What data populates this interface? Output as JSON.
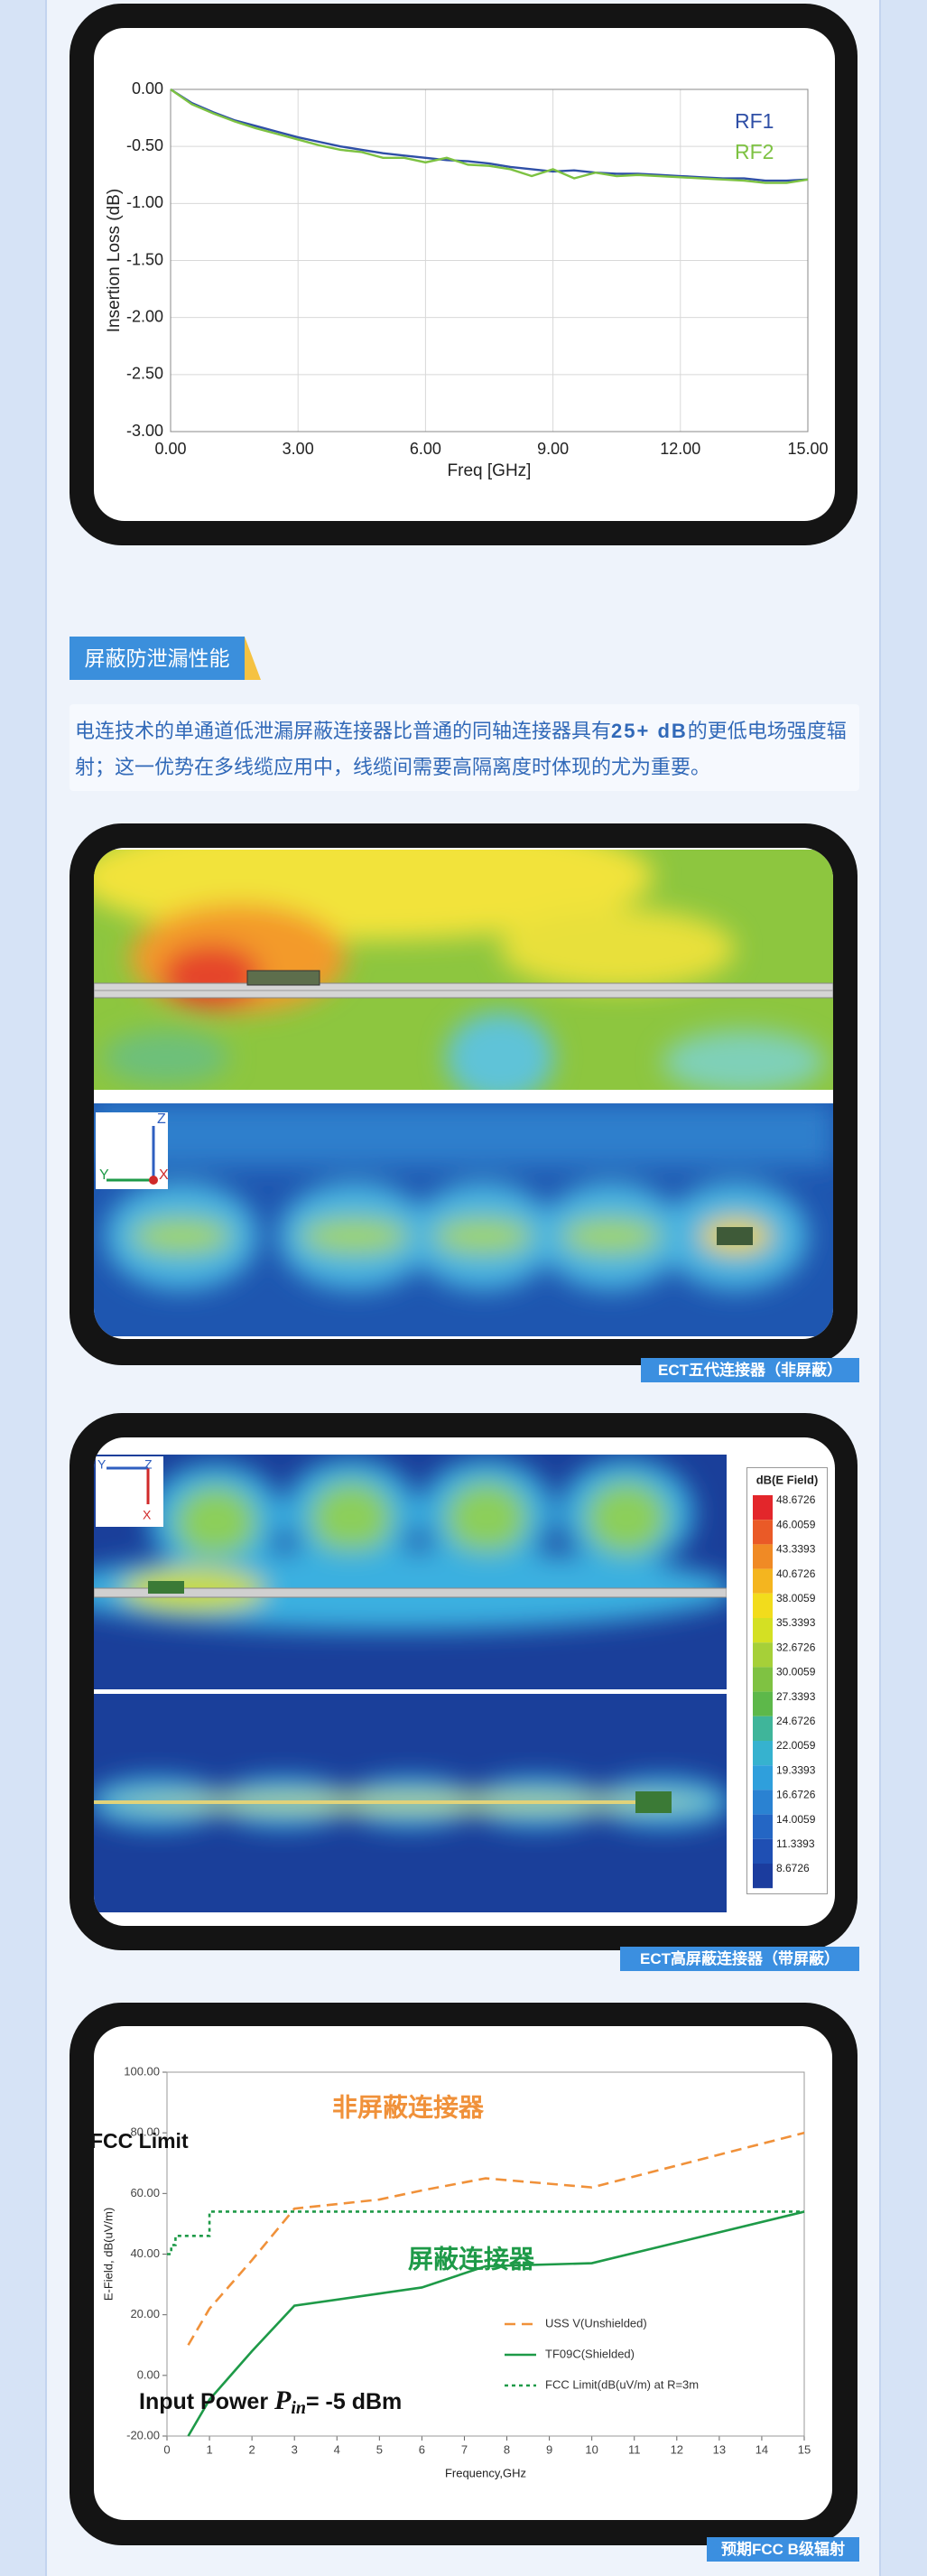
{
  "chart_data": [
    {
      "type": "line",
      "x_label": "Freq [GHz]",
      "y_label": "Insertion Loss (dB)",
      "x": [
        0,
        0.5,
        1,
        1.5,
        2,
        2.5,
        3,
        3.5,
        4,
        4.5,
        5,
        5.5,
        6,
        6.5,
        7,
        7.5,
        8,
        8.5,
        9,
        9.5,
        10,
        10.5,
        11,
        11.5,
        12,
        12.5,
        13,
        13.5,
        14,
        14.5,
        15
      ],
      "series": [
        {
          "name": "RF1",
          "color": "#2f4fa6",
          "style": "solid",
          "values": [
            0,
            -0.12,
            -0.2,
            -0.27,
            -0.32,
            -0.37,
            -0.42,
            -0.46,
            -0.5,
            -0.53,
            -0.56,
            -0.58,
            -0.6,
            -0.62,
            -0.63,
            -0.65,
            -0.68,
            -0.7,
            -0.72,
            -0.71,
            -0.73,
            -0.74,
            -0.74,
            -0.75,
            -0.76,
            -0.77,
            -0.78,
            -0.78,
            -0.8,
            -0.8,
            -0.79
          ]
        },
        {
          "name": "RF2",
          "color": "#7dc242",
          "style": "solid",
          "values": [
            0,
            -0.13,
            -0.21,
            -0.28,
            -0.34,
            -0.39,
            -0.44,
            -0.49,
            -0.53,
            -0.55,
            -0.6,
            -0.6,
            -0.64,
            -0.6,
            -0.66,
            -0.67,
            -0.7,
            -0.76,
            -0.7,
            -0.78,
            -0.73,
            -0.76,
            -0.75,
            -0.76,
            -0.77,
            -0.78,
            -0.79,
            -0.8,
            -0.82,
            -0.82,
            -0.79
          ]
        }
      ],
      "xlim": [
        0,
        15
      ],
      "ylim": [
        -3,
        0
      ],
      "xticks": [
        {
          "value": 0,
          "label": "0.00"
        },
        {
          "value": 3,
          "label": "3.00"
        },
        {
          "value": 6,
          "label": "6.00"
        },
        {
          "value": 9,
          "label": "9.00"
        },
        {
          "value": 12,
          "label": "12.00"
        },
        {
          "value": 15,
          "label": "15.00"
        }
      ],
      "yticks": [
        {
          "value": 0,
          "label": "0.00"
        },
        {
          "value": -0.5,
          "label": "-0.50"
        },
        {
          "value": -1,
          "label": "-1.00"
        },
        {
          "value": -1.5,
          "label": "-1.50"
        },
        {
          "value": -2,
          "label": "-2.00"
        },
        {
          "value": -2.5,
          "label": "-2.50"
        },
        {
          "value": -3,
          "label": "-3.00"
        }
      ],
      "grid": true,
      "legend": "top-right"
    },
    {
      "type": "line",
      "x_label": "Frequency,GHz",
      "y_label": "E-Field, dB(uV/m)",
      "series": [
        {
          "name": "USS V(Unshielded)",
          "color": "#f0913a",
          "style": "dashed",
          "x": [
            0.5,
            1,
            2,
            3,
            5,
            6,
            7.5,
            10,
            15
          ],
          "values": [
            10,
            22,
            38,
            55,
            58,
            61,
            65,
            62,
            80
          ]
        },
        {
          "name": "TF09C(Shielded)",
          "color": "#1e9a48",
          "style": "solid",
          "x": [
            0.5,
            1,
            2,
            3,
            5,
            6,
            7.5,
            10,
            15
          ],
          "values": [
            -20,
            -8,
            8,
            23,
            27,
            29,
            36,
            37,
            54
          ]
        },
        {
          "name": "FCC Limit(dB(uV/m) at R=3m",
          "color": "#1e9a48",
          "style": "dotted",
          "x": [
            0,
            0.1,
            0.1,
            0.2,
            0.2,
            1,
            1,
            15
          ],
          "values": [
            40,
            40,
            43,
            43,
            46,
            46,
            54,
            54
          ]
        }
      ],
      "xlim": [
        0,
        15
      ],
      "ylim": [
        -20,
        100
      ],
      "xticks": [
        0,
        1,
        2,
        3,
        4,
        5,
        6,
        7,
        8,
        9,
        10,
        11,
        12,
        13,
        14,
        15
      ],
      "yticks": [
        {
          "value": -20,
          "label": "-20.00"
        },
        {
          "value": 0,
          "label": "0.00"
        },
        {
          "value": 20,
          "label": "20.00"
        },
        {
          "value": 40,
          "label": "40.00"
        },
        {
          "value": 60,
          "label": "60.00"
        },
        {
          "value": 80,
          "label": "80.00"
        },
        {
          "value": 100,
          "label": "100.00"
        }
      ],
      "grid": false,
      "legend": "bottom-right",
      "annotations": [
        {
          "text": "FCC Limit",
          "color": "#111111"
        },
        {
          "text": "非屏蔽连接器",
          "color": "#f0913a"
        },
        {
          "text": "屏蔽连接器",
          "color": "#1e9a48"
        }
      ],
      "input_power": {
        "text": "Input Power ",
        "symbol": "P",
        "subscript": "in",
        "suffix": "= -5 dBm"
      }
    }
  ],
  "section": {
    "title": "屏蔽防泄漏性能"
  },
  "paragraph": {
    "parts": [
      "电连技术的单通道低泄漏屏蔽连接器比普通的同轴连接器具有",
      "25+ dB",
      "的更低电场强度辐射；这一优势在多线缆应用中，线缆间需要高隔离度时体现的尤为重要。"
    ]
  },
  "figures": [
    {
      "caption": "ECT五代连接器（非屏蔽）",
      "axes": [
        "Z",
        "Y",
        "X"
      ]
    },
    {
      "caption": "ECT高屏蔽连接器（带屏蔽）",
      "axes": [
        "Y",
        "Z",
        "X"
      ],
      "colorbar": {
        "title": "dB(E Field)",
        "labels": [
          48.6726,
          46.0059,
          43.3393,
          40.6726,
          38.0059,
          35.3393,
          32.6726,
          30.0059,
          27.3393,
          24.6726,
          22.0059,
          19.3393,
          16.6726,
          14.0059,
          11.3393,
          8.6726
        ],
        "colors": [
          "#e3262b",
          "#ea5a27",
          "#f08a25",
          "#f4b51f",
          "#f2dc1c",
          "#d4e023",
          "#a6d038",
          "#7fc242",
          "#5db84a",
          "#3fb59a",
          "#36b2cf",
          "#2f9fdc",
          "#2a82d2",
          "#2466c4",
          "#1f4fb3",
          "#1b3c9e"
        ]
      }
    },
    {
      "caption": "预期FCC B级辐射"
    }
  ]
}
